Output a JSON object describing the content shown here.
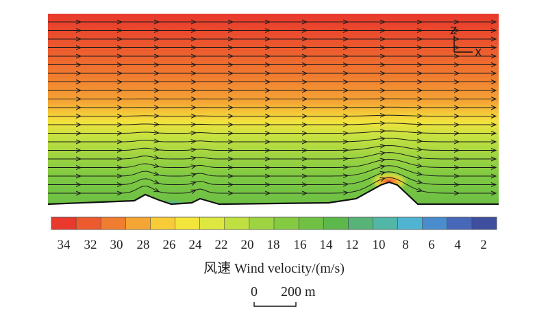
{
  "figure": {
    "axes": {
      "z_label": "Z",
      "x_label": "X"
    },
    "colorbar": {
      "tick_labels": [
        "34",
        "32",
        "30",
        "28",
        "26",
        "24",
        "22",
        "20",
        "18",
        "16",
        "14",
        "12",
        "10",
        "8",
        "6",
        "4",
        "2"
      ],
      "colors": [
        "#e8392c",
        "#ec5a2e",
        "#f07d30",
        "#f5a534",
        "#f8cc36",
        "#f4e53c",
        "#dde73f",
        "#bfe040",
        "#9ed441",
        "#84cb42",
        "#6fc043",
        "#5db84c",
        "#58b378",
        "#52b7a6",
        "#4fb4d2",
        "#4a8ccd",
        "#4768b8",
        "#3e4fa0"
      ]
    },
    "caption": "风速 Wind velocity/(m/s)",
    "scale_bar": {
      "start_label": "0",
      "end_label": "200 m"
    }
  },
  "chart_data": {
    "type": "heatmap",
    "title": "",
    "variable": "Wind velocity",
    "unit": "m/s",
    "colorbar_range": [
      1,
      35
    ],
    "colorbar_ticks": [
      34,
      32,
      30,
      28,
      26,
      24,
      22,
      20,
      18,
      16,
      14,
      12,
      10,
      8,
      6,
      4,
      2
    ],
    "scale_bar_m": 200,
    "axes_shown": [
      "Z",
      "X"
    ]
  }
}
